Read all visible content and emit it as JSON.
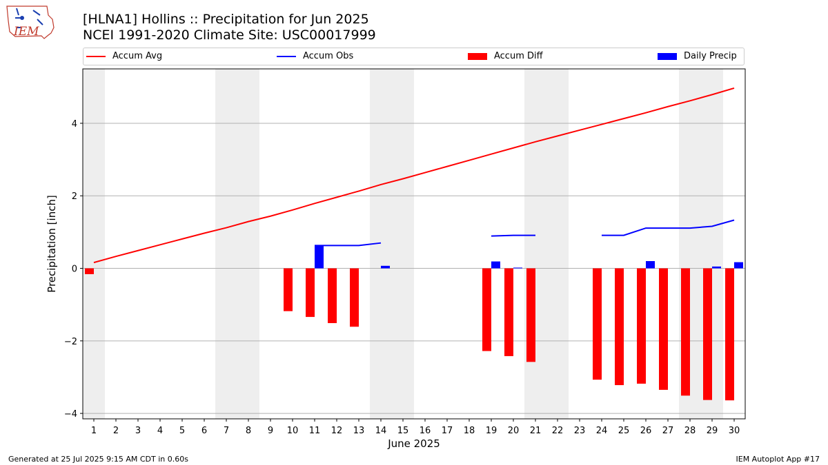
{
  "header": {
    "title_line1": "[HLNA1] Hollins :: Precipitation for Jun 2025",
    "title_line2": "NCEI 1991-2020 Climate Site: USC00017999"
  },
  "logo": {
    "text": "IEM"
  },
  "footer": {
    "left": "Generated at 25 Jul 2025 9:15 AM CDT in 0.60s",
    "right": "IEM Autoplot App #17"
  },
  "colors": {
    "avg": "#ff0000",
    "obs": "#0000ff",
    "diff": "#ff0000",
    "daily": "#0000ff",
    "weekend_shade": "#eeeeee",
    "grid": "#b0b0b0"
  },
  "chart_data": {
    "type": "bar",
    "title": "[HLNA1] Hollins :: Precipitation for Jun 2025",
    "xlabel": "June 2025",
    "ylabel": "Precipitation [inch]",
    "ylim": [
      -4.15,
      5.5
    ],
    "yticks": [
      -4,
      -2,
      0,
      2,
      4
    ],
    "ytick_labels": [
      "−4",
      "−2",
      "0",
      "2",
      "4"
    ],
    "grid": "horizontal",
    "legend_placement": "top",
    "days": [
      1,
      2,
      3,
      4,
      5,
      6,
      7,
      8,
      9,
      10,
      11,
      12,
      13,
      14,
      15,
      16,
      17,
      18,
      19,
      20,
      21,
      22,
      23,
      24,
      25,
      26,
      27,
      28,
      29,
      30
    ],
    "weekend_days": [
      1,
      7,
      8,
      14,
      15,
      21,
      22,
      28,
      29
    ],
    "series": [
      {
        "name": "Accum Avg",
        "kind": "line",
        "values": [
          0.16,
          0.33,
          0.49,
          0.65,
          0.81,
          0.97,
          1.12,
          1.29,
          1.44,
          1.61,
          1.79,
          1.96,
          2.13,
          2.31,
          2.47,
          2.64,
          2.81,
          2.98,
          3.15,
          3.32,
          3.49,
          3.65,
          3.81,
          3.97,
          4.13,
          4.29,
          4.46,
          4.62,
          4.79,
          4.97
        ]
      },
      {
        "name": "Accum Obs",
        "kind": "line",
        "values": [
          null,
          null,
          null,
          null,
          null,
          null,
          null,
          null,
          null,
          null,
          0.63,
          0.63,
          0.63,
          0.7,
          null,
          null,
          null,
          null,
          0.89,
          0.91,
          0.91,
          null,
          null,
          0.91,
          0.91,
          1.11,
          1.11,
          1.11,
          1.16,
          1.33
        ]
      },
      {
        "name": "Accum Diff",
        "kind": "bar",
        "values": [
          -0.16,
          null,
          null,
          null,
          null,
          null,
          null,
          null,
          null,
          -1.18,
          -1.34,
          -1.51,
          -1.61,
          null,
          null,
          null,
          null,
          null,
          -2.28,
          -2.42,
          -2.58,
          null,
          null,
          -3.07,
          -3.22,
          -3.18,
          -3.35,
          -3.51,
          -3.63,
          -3.64
        ]
      },
      {
        "name": "Daily Precip",
        "kind": "bar",
        "values": [
          0,
          0,
          0,
          0,
          0,
          0,
          0,
          0,
          0,
          0,
          0.63,
          0,
          0,
          0.07,
          0,
          0,
          0,
          0,
          0.19,
          0.02,
          0,
          0,
          0,
          0,
          0,
          0.2,
          0,
          0,
          0.05,
          0.17
        ]
      }
    ]
  }
}
